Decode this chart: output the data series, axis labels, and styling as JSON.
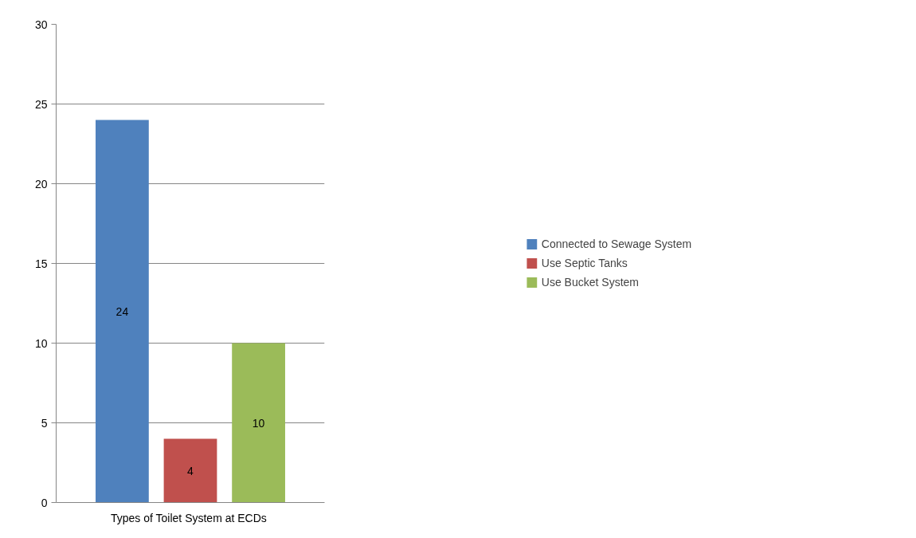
{
  "chart_data": {
    "type": "bar",
    "categories": [
      "Types of  Toilet System at ECDs"
    ],
    "series": [
      {
        "name": "Connected to Sewage System",
        "color": "#4f81bd",
        "values": [
          24
        ]
      },
      {
        "name": "Use Septic Tanks",
        "color": "#c0504d",
        "values": [
          4
        ]
      },
      {
        "name": "Use Bucket System",
        "color": "#9bbb59",
        "values": [
          10
        ]
      }
    ],
    "ylim": [
      0,
      30
    ],
    "yticks": [
      0,
      5,
      10,
      15,
      20,
      25,
      30
    ],
    "grid": "y",
    "legend": "right",
    "data_labels": true
  }
}
